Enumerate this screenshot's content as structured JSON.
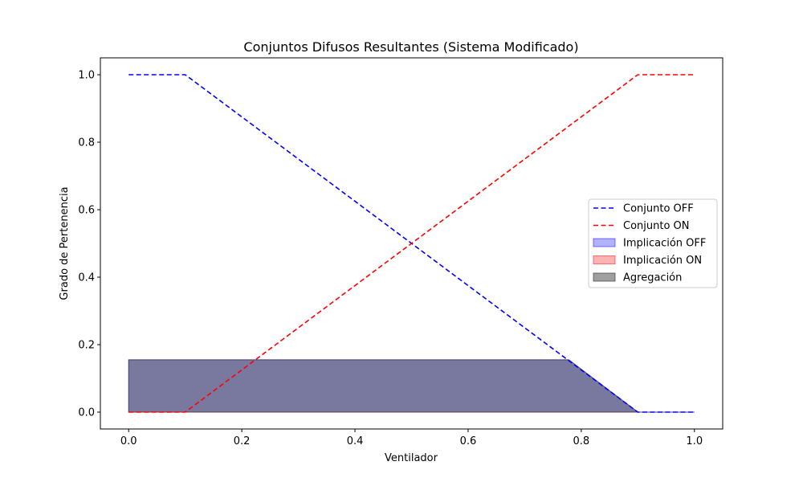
{
  "chart_data": {
    "type": "line",
    "title": "Conjuntos Difusos Resultantes (Sistema Modificado)",
    "xlabel": "Ventilador",
    "ylabel": "Grado de Pertenencia",
    "xlim": [
      -0.05,
      1.05
    ],
    "ylim": [
      -0.05,
      1.05
    ],
    "xticks": [
      "0.0",
      "0.2",
      "0.4",
      "0.6",
      "0.8",
      "1.0"
    ],
    "yticks": [
      "0.0",
      "0.2",
      "0.4",
      "0.6",
      "0.8",
      "1.0"
    ],
    "grid": false,
    "legend_position": "center-right",
    "series": [
      {
        "name": "Conjunto OFF",
        "kind": "dashed-line",
        "color": "#0000ff",
        "x": [
          0.0,
          0.1,
          0.9,
          1.0
        ],
        "y": [
          1.0,
          1.0,
          0.0,
          0.0
        ]
      },
      {
        "name": "Conjunto ON",
        "kind": "dashed-line",
        "color": "#ff0000",
        "x": [
          0.0,
          0.1,
          0.9,
          1.0
        ],
        "y": [
          0.0,
          0.0,
          1.0,
          1.0
        ]
      },
      {
        "name": "Implicación OFF",
        "kind": "filled-area",
        "color": "#0000ff",
        "opacity": 0.3,
        "x": [
          0.0,
          0.778,
          0.9,
          1.0
        ],
        "y": [
          0.155,
          0.155,
          0.0,
          0.0
        ]
      },
      {
        "name": "Implicación ON",
        "kind": "filled-area",
        "color": "#ff0000",
        "opacity": 0.3,
        "x": [
          0.0,
          1.0
        ],
        "y": [
          0.0,
          0.0
        ]
      },
      {
        "name": "Agregación",
        "kind": "filled-area",
        "color": "#404040",
        "opacity": 0.5,
        "x": [
          0.0,
          0.778,
          0.9,
          1.0
        ],
        "y": [
          0.155,
          0.155,
          0.0,
          0.0
        ]
      }
    ]
  }
}
